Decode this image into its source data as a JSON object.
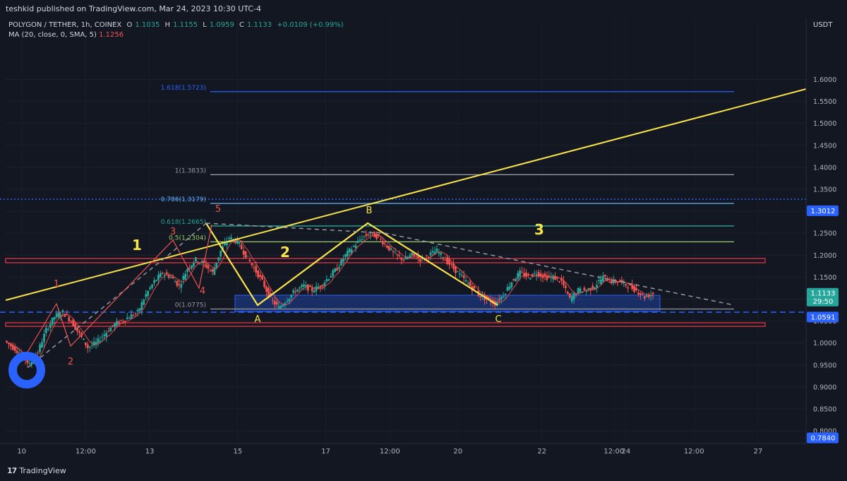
{
  "header": {
    "published": "teshkid published on TradingView.com, Mar 24, 2023 10:30 UTC-4",
    "currency": "USDT"
  },
  "legend": {
    "symbol": "POLYGON / TETHER, 1h, COINEX",
    "o_label": "O",
    "o_value": "1.1035",
    "h_label": "H",
    "h_value": "1.1155",
    "l_label": "L",
    "l_value": "1.0959",
    "c_label": "C",
    "c_value": "1.1133",
    "change": "+0.0109 (+0.99%)",
    "ma_label": "MA (20, close, 0, SMA, 5)",
    "ma_value": "1.1256"
  },
  "footer": {
    "logo_mark": "17",
    "logo_text": "TradingView"
  },
  "colors": {
    "background": "#131722",
    "up": "#26a69a",
    "down": "#ef5350",
    "wave": "#f7e34b",
    "ma": "#ef5350",
    "fib_blue": "#2962ff",
    "fib_grey": "#9598a1",
    "fib_lightblue": "#64b5f6",
    "fib_green": "#26a69a",
    "fib_lime": "#9ccc65",
    "zone": "#2962ff",
    "resistance": "#f23645"
  },
  "chart_data": {
    "type": "candlestick",
    "title": "POLYGON / TETHER, 1h, COINEX",
    "ylabel": "USDT",
    "ylim": [
      0.76,
      1.67
    ],
    "y_ticks": [
      "1.6000",
      "1.5500",
      "1.5000",
      "1.4500",
      "1.4000",
      "1.3500",
      "1.3000",
      "1.2500",
      "1.2000",
      "1.1500",
      "1.1000",
      "1.0500",
      "1.0000",
      "0.9500",
      "0.9000",
      "0.8500",
      "0.8000"
    ],
    "x_ticks": [
      "10",
      "12:00",
      "13",
      "15",
      "17",
      "12:00",
      "20",
      "22",
      "12:00",
      "24",
      "12:00",
      "27"
    ],
    "price_labels": [
      {
        "value": 1.3012,
        "text": "1.3012",
        "color": "#2962ff"
      },
      {
        "value": 1.1133,
        "text": "1.1133",
        "sub": "29:50",
        "color": "#26a69a"
      },
      {
        "value": 1.0591,
        "text": "1.0591",
        "color": "#2962ff"
      },
      {
        "value": 0.784,
        "text": "0.7840",
        "color": "#2962ff"
      }
    ],
    "fib_levels": [
      {
        "label": "1.618(1.5723)",
        "value": 1.5723,
        "color": "#2962ff"
      },
      {
        "label": "1(1.3833)",
        "value": 1.3833,
        "color": "#9598a1"
      },
      {
        "label": "0.786(1.3179)",
        "value": 1.3179,
        "color": "#64b5f6"
      },
      {
        "label": "0.618(1.2665)",
        "value": 1.2665,
        "color": "#26a69a"
      },
      {
        "label": "0.5(1.2304)",
        "value": 1.2304,
        "color": "#9ccc65"
      },
      {
        "label": "0(1.0775)",
        "value": 1.0775,
        "color": "#9598a1"
      }
    ],
    "wave_labels": [
      {
        "text": "1",
        "color": "#f7e34b"
      },
      {
        "text": "2",
        "color": "#f7e34b"
      },
      {
        "text": "3",
        "color": "#f7e34b"
      },
      {
        "text": "A",
        "color": "#f7e34b"
      },
      {
        "text": "B",
        "color": "#f7e34b"
      },
      {
        "text": "C",
        "color": "#f7e34b"
      },
      {
        "text": "1",
        "color": "#ef5350"
      },
      {
        "text": "2",
        "color": "#ef5350"
      },
      {
        "text": "3",
        "color": "#ef5350"
      },
      {
        "text": "4",
        "color": "#ef5350"
      },
      {
        "text": "5",
        "color": "#ef5350"
      }
    ],
    "price_path": [
      [
        0,
        1.005
      ],
      [
        0.01,
        0.99
      ],
      [
        0.02,
        0.975
      ],
      [
        0.03,
        0.95
      ],
      [
        0.04,
        0.98
      ],
      [
        0.05,
        1.03
      ],
      [
        0.06,
        1.06
      ],
      [
        0.07,
        1.07
      ],
      [
        0.08,
        1.05
      ],
      [
        0.09,
        1.02
      ],
      [
        0.1,
        0.99
      ],
      [
        0.11,
        1.0
      ],
      [
        0.12,
        1.02
      ],
      [
        0.13,
        1.04
      ],
      [
        0.14,
        1.05
      ],
      [
        0.15,
        1.06
      ],
      [
        0.16,
        1.07
      ],
      [
        0.17,
        1.11
      ],
      [
        0.18,
        1.14
      ],
      [
        0.19,
        1.16
      ],
      [
        0.2,
        1.15
      ],
      [
        0.21,
        1.13
      ],
      [
        0.22,
        1.17
      ],
      [
        0.23,
        1.19
      ],
      [
        0.24,
        1.18
      ],
      [
        0.25,
        1.16
      ],
      [
        0.26,
        1.21
      ],
      [
        0.27,
        1.24
      ],
      [
        0.28,
        1.23
      ],
      [
        0.29,
        1.2
      ],
      [
        0.3,
        1.17
      ],
      [
        0.31,
        1.14
      ],
      [
        0.32,
        1.1
      ],
      [
        0.33,
        1.08
      ],
      [
        0.34,
        1.1
      ],
      [
        0.35,
        1.12
      ],
      [
        0.36,
        1.13
      ],
      [
        0.37,
        1.12
      ],
      [
        0.38,
        1.13
      ],
      [
        0.39,
        1.15
      ],
      [
        0.4,
        1.17
      ],
      [
        0.41,
        1.2
      ],
      [
        0.42,
        1.22
      ],
      [
        0.43,
        1.24
      ],
      [
        0.44,
        1.25
      ],
      [
        0.45,
        1.24
      ],
      [
        0.46,
        1.22
      ],
      [
        0.47,
        1.2
      ],
      [
        0.48,
        1.19
      ],
      [
        0.49,
        1.2
      ],
      [
        0.5,
        1.19
      ],
      [
        0.51,
        1.2
      ],
      [
        0.52,
        1.21
      ],
      [
        0.53,
        1.19
      ],
      [
        0.54,
        1.17
      ],
      [
        0.55,
        1.15
      ],
      [
        0.56,
        1.13
      ],
      [
        0.57,
        1.11
      ],
      [
        0.58,
        1.1
      ],
      [
        0.59,
        1.09
      ],
      [
        0.6,
        1.11
      ],
      [
        0.61,
        1.14
      ],
      [
        0.62,
        1.16
      ],
      [
        0.63,
        1.15
      ],
      [
        0.64,
        1.16
      ],
      [
        0.65,
        1.15
      ],
      [
        0.66,
        1.15
      ],
      [
        0.67,
        1.14
      ],
      [
        0.68,
        1.1
      ],
      [
        0.69,
        1.12
      ],
      [
        0.7,
        1.12
      ],
      [
        0.71,
        1.13
      ],
      [
        0.72,
        1.15
      ],
      [
        0.73,
        1.14
      ],
      [
        0.74,
        1.14
      ],
      [
        0.75,
        1.13
      ],
      [
        0.76,
        1.12
      ],
      [
        0.77,
        1.105
      ],
      [
        0.78,
        1.113
      ]
    ],
    "annotations": [
      "Fibonacci extension levels",
      "Yellow ABC corrective structure",
      "Red impulse sub-waves 1-5",
      "Blue support zone near 1.06-1.08",
      "Red resistance bands near 1.17 and 1.035"
    ]
  }
}
